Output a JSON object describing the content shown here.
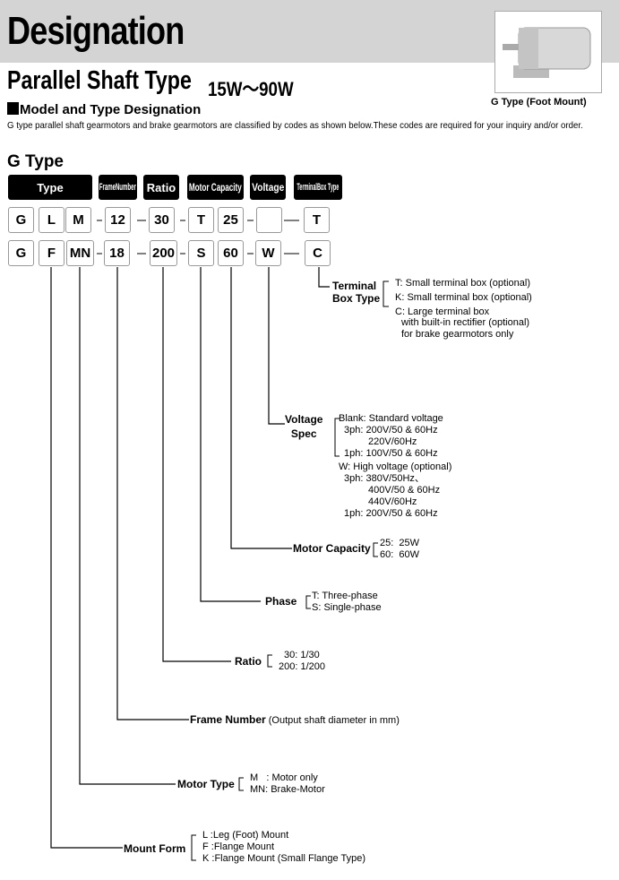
{
  "header": {
    "title": "Designation",
    "subtitle": "Parallel Shaft Type",
    "power_range": "15W〜90W",
    "photo_caption": "G Type (Foot Mount)"
  },
  "section": {
    "title": "Model and Type Designation",
    "intro": "G type parallel shaft gearmotors and brake gearmotors are classified by codes as shown below.These codes are required for your inquiry and/or order."
  },
  "gtype": {
    "title": "G Type",
    "headers": [
      "Type",
      "FrameNumber",
      "Ratio",
      "Motor Capacity",
      "Voltage",
      "TerminalBox Type"
    ],
    "row1": [
      "G",
      "L",
      "M",
      "12",
      "30",
      "T",
      "25",
      "",
      "T"
    ],
    "row2": [
      "G",
      "F",
      "MN",
      "18",
      "200",
      "S",
      "60",
      "W",
      "C"
    ]
  },
  "legend": {
    "terminal": {
      "label1": "Terminal",
      "label2": "Box Type",
      "items": [
        "T: Small terminal box (optional)",
        "K: Small terminal box (optional)",
        "C: Large terminal box",
        "with built-in rectifier (optional)",
        "for brake gearmotors only"
      ]
    },
    "voltage": {
      "label1": "Voltage",
      "label2": "Spec",
      "items": [
        "Blank: Standard voltage",
        "3ph: 200V/50 & 60Hz",
        "220V/60Hz",
        "1ph: 100V/50 & 60Hz",
        "W: High voltage (optional)",
        "3ph: 380V/50Hz、",
        "400V/50 & 60Hz",
        "440V/60Hz",
        "1ph: 200V/50 & 60Hz"
      ]
    },
    "capacity": {
      "label": "Motor Capacity",
      "items": [
        "25:  25W",
        "60:  60W"
      ]
    },
    "phase": {
      "label": "Phase",
      "items": [
        "T: Three-phase",
        "S: Single-phase"
      ]
    },
    "ratio": {
      "label": "Ratio",
      "items": [
        "30: 1/30",
        "200: 1/200"
      ]
    },
    "frame": {
      "label": "Frame Number",
      "note": "(Output shaft diameter in mm)"
    },
    "motor_type": {
      "label": "Motor Type",
      "items": [
        "M   : Motor only",
        "MN: Brake-Motor"
      ]
    },
    "mount": {
      "label": "Mount Form",
      "items": [
        "L :Leg (Foot) Mount",
        "F :Flange Mount",
        "K :Flange Mount (Small Flange Type)"
      ]
    }
  }
}
